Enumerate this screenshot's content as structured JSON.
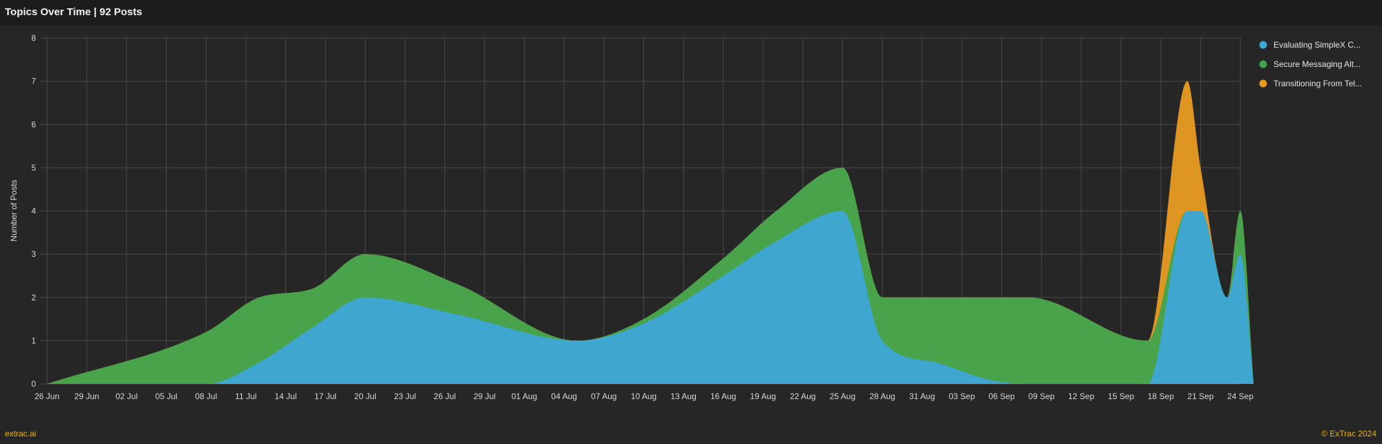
{
  "header": {
    "title": "Topics Over Time | 92 Posts"
  },
  "footer": {
    "left": "extrac.ai",
    "right": "© ExTrac 2024"
  },
  "colors": {
    "background": "#262626",
    "grid": "#4a4a4a",
    "series": [
      "#3fa7d6",
      "#3fa34d",
      "#e89b21"
    ]
  },
  "chart_data": {
    "type": "area",
    "stacked": true,
    "title": "Topics Over Time | 92 Posts",
    "ylabel": "Number of Posts",
    "xlabel": "",
    "ylim": [
      0,
      8
    ],
    "yticks": [
      "0",
      "1",
      "2",
      "3",
      "4",
      "5",
      "6",
      "7",
      "8"
    ],
    "grid": true,
    "legend_position": "top-right",
    "x_ticks": [
      "26 Jun",
      "29 Jun",
      "02 Jul",
      "05 Jul",
      "08 Jul",
      "11 Jul",
      "14 Jul",
      "17 Jul",
      "20 Jul",
      "23 Jul",
      "26 Jul",
      "29 Jul",
      "01 Aug",
      "04 Aug",
      "07 Aug",
      "10 Aug",
      "13 Aug",
      "16 Aug",
      "19 Aug",
      "22 Aug",
      "25 Aug",
      "28 Aug",
      "31 Aug",
      "03 Sep",
      "06 Sep",
      "09 Sep",
      "12 Sep",
      "15 Sep",
      "18 Sep",
      "21 Sep",
      "24 Sep"
    ],
    "x_range": [
      "2024-06-26",
      "2024-09-24"
    ],
    "series": [
      {
        "name": "Evaluating SimpleX C...",
        "points": [
          [
            "2024-06-26",
            0
          ],
          [
            "2024-07-08",
            0
          ],
          [
            "2024-07-12",
            0.5
          ],
          [
            "2024-07-16",
            1.3
          ],
          [
            "2024-07-20",
            2
          ],
          [
            "2024-07-27",
            1.6
          ],
          [
            "2024-08-05",
            1
          ],
          [
            "2024-08-10",
            1.4
          ],
          [
            "2024-08-16",
            2.5
          ],
          [
            "2024-08-20",
            3.3
          ],
          [
            "2024-08-25",
            4
          ],
          [
            "2024-08-28",
            1
          ],
          [
            "2024-09-01",
            0.5
          ],
          [
            "2024-09-05",
            0.1
          ],
          [
            "2024-09-08",
            0
          ],
          [
            "2024-09-17",
            0
          ],
          [
            "2024-09-20",
            4
          ],
          [
            "2024-09-21",
            4
          ],
          [
            "2024-09-23",
            2
          ],
          [
            "2024-09-24",
            3
          ],
          [
            "2024-09-25",
            0
          ]
        ]
      },
      {
        "name": "Secure Messaging Alt...",
        "points": [
          [
            "2024-06-26",
            0
          ],
          [
            "2024-07-08",
            1.2
          ],
          [
            "2024-07-12",
            1.5
          ],
          [
            "2024-07-16",
            0.9
          ],
          [
            "2024-07-20",
            1
          ],
          [
            "2024-07-27",
            0.7
          ],
          [
            "2024-08-05",
            0
          ],
          [
            "2024-08-10",
            0.1
          ],
          [
            "2024-08-16",
            0.4
          ],
          [
            "2024-08-20",
            0.7
          ],
          [
            "2024-08-25",
            1
          ],
          [
            "2024-08-28",
            1
          ],
          [
            "2024-09-01",
            1.5
          ],
          [
            "2024-09-05",
            1.9
          ],
          [
            "2024-09-08",
            2
          ],
          [
            "2024-09-17",
            1
          ],
          [
            "2024-09-20",
            0
          ],
          [
            "2024-09-21",
            0
          ],
          [
            "2024-09-23",
            0
          ],
          [
            "2024-09-24",
            1
          ],
          [
            "2024-09-25",
            0
          ]
        ]
      },
      {
        "name": "Transitioning From Tel...",
        "points": [
          [
            "2024-06-26",
            0
          ],
          [
            "2024-07-08",
            0
          ],
          [
            "2024-07-12",
            0
          ],
          [
            "2024-07-16",
            0
          ],
          [
            "2024-07-20",
            0
          ],
          [
            "2024-07-27",
            0
          ],
          [
            "2024-08-05",
            0
          ],
          [
            "2024-08-10",
            0
          ],
          [
            "2024-08-16",
            0
          ],
          [
            "2024-08-20",
            0
          ],
          [
            "2024-08-25",
            0
          ],
          [
            "2024-08-28",
            0
          ],
          [
            "2024-09-01",
            0
          ],
          [
            "2024-09-05",
            0
          ],
          [
            "2024-09-08",
            0
          ],
          [
            "2024-09-17",
            0
          ],
          [
            "2024-09-20",
            3
          ],
          [
            "2024-09-21",
            1
          ],
          [
            "2024-09-23",
            0
          ],
          [
            "2024-09-24",
            0
          ],
          [
            "2024-09-25",
            0
          ]
        ]
      }
    ]
  }
}
